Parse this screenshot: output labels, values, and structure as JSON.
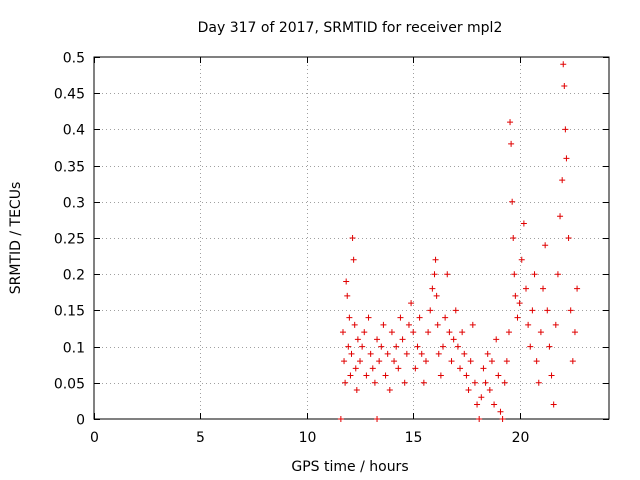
{
  "chart_data": {
    "type": "scatter",
    "title": "Day 317 of 2017, SRMTID for receiver mpl2",
    "xlabel": "GPS time / hours",
    "ylabel": "SRMTID / TECUs",
    "xlim": [
      0,
      24.2
    ],
    "ylim": [
      0,
      0.5
    ],
    "x_ticks": [
      0,
      5,
      10,
      15,
      20
    ],
    "x_tick_labels": [
      "0",
      "5",
      "10",
      "15",
      "20"
    ],
    "y_ticks": [
      0,
      0.05,
      0.1,
      0.15,
      0.2,
      0.25,
      0.3,
      0.35,
      0.4,
      0.45,
      0.5
    ],
    "y_tick_labels": [
      "0",
      "0.05",
      "0.1",
      "0.15",
      "0.2",
      "0.25",
      "0.3",
      "0.35",
      "0.4",
      "0.45",
      "0.5"
    ],
    "grid": true,
    "marker": "plus",
    "marker_color": "#e00000",
    "series": [
      {
        "name": "SRMTID",
        "points": [
          [
            11.6,
            0.0
          ],
          [
            11.7,
            0.12
          ],
          [
            11.75,
            0.08
          ],
          [
            11.8,
            0.05
          ],
          [
            11.85,
            0.19
          ],
          [
            11.9,
            0.17
          ],
          [
            11.95,
            0.1
          ],
          [
            12.0,
            0.14
          ],
          [
            12.05,
            0.06
          ],
          [
            12.1,
            0.09
          ],
          [
            12.15,
            0.25
          ],
          [
            12.2,
            0.22
          ],
          [
            12.25,
            0.13
          ],
          [
            12.3,
            0.07
          ],
          [
            12.35,
            0.04
          ],
          [
            12.4,
            0.11
          ],
          [
            12.5,
            0.08
          ],
          [
            12.6,
            0.1
          ],
          [
            12.7,
            0.12
          ],
          [
            12.8,
            0.06
          ],
          [
            12.9,
            0.14
          ],
          [
            13.0,
            0.09
          ],
          [
            13.1,
            0.07
          ],
          [
            13.2,
            0.05
          ],
          [
            13.3,
            0.0
          ],
          [
            13.3,
            0.11
          ],
          [
            13.4,
            0.08
          ],
          [
            13.5,
            0.1
          ],
          [
            13.6,
            0.13
          ],
          [
            13.7,
            0.06
          ],
          [
            13.8,
            0.09
          ],
          [
            13.9,
            0.04
          ],
          [
            14.0,
            0.12
          ],
          [
            14.1,
            0.08
          ],
          [
            14.2,
            0.1
          ],
          [
            14.3,
            0.07
          ],
          [
            14.4,
            0.14
          ],
          [
            14.5,
            0.11
          ],
          [
            14.6,
            0.05
          ],
          [
            14.7,
            0.09
          ],
          [
            14.8,
            0.13
          ],
          [
            14.9,
            0.16
          ],
          [
            15.0,
            0.12
          ],
          [
            15.1,
            0.07
          ],
          [
            15.2,
            0.1
          ],
          [
            15.3,
            0.14
          ],
          [
            15.4,
            0.09
          ],
          [
            15.5,
            0.05
          ],
          [
            15.6,
            0.08
          ],
          [
            15.7,
            0.12
          ],
          [
            15.8,
            0.15
          ],
          [
            15.9,
            0.18
          ],
          [
            16.0,
            0.2
          ],
          [
            16.05,
            0.22
          ],
          [
            16.1,
            0.17
          ],
          [
            16.15,
            0.13
          ],
          [
            16.2,
            0.09
          ],
          [
            16.3,
            0.06
          ],
          [
            16.4,
            0.1
          ],
          [
            16.5,
            0.14
          ],
          [
            16.6,
            0.2
          ],
          [
            16.7,
            0.12
          ],
          [
            16.8,
            0.08
          ],
          [
            16.9,
            0.11
          ],
          [
            17.0,
            0.15
          ],
          [
            17.1,
            0.1
          ],
          [
            17.2,
            0.07
          ],
          [
            17.3,
            0.12
          ],
          [
            17.4,
            0.09
          ],
          [
            17.5,
            0.06
          ],
          [
            17.6,
            0.04
          ],
          [
            17.7,
            0.08
          ],
          [
            17.8,
            0.13
          ],
          [
            17.9,
            0.05
          ],
          [
            18.0,
            0.02
          ],
          [
            18.1,
            0.0
          ],
          [
            18.2,
            0.03
          ],
          [
            18.3,
            0.07
          ],
          [
            18.4,
            0.05
          ],
          [
            18.5,
            0.09
          ],
          [
            18.6,
            0.04
          ],
          [
            18.7,
            0.08
          ],
          [
            18.8,
            0.02
          ],
          [
            18.9,
            0.11
          ],
          [
            19.0,
            0.06
          ],
          [
            19.1,
            0.01
          ],
          [
            19.2,
            0.0
          ],
          [
            19.3,
            0.05
          ],
          [
            19.4,
            0.08
          ],
          [
            19.5,
            0.12
          ],
          [
            19.55,
            0.41
          ],
          [
            19.6,
            0.38
          ],
          [
            19.65,
            0.3
          ],
          [
            19.7,
            0.25
          ],
          [
            19.75,
            0.2
          ],
          [
            19.8,
            0.17
          ],
          [
            19.9,
            0.14
          ],
          [
            20.0,
            0.16
          ],
          [
            20.1,
            0.22
          ],
          [
            20.2,
            0.27
          ],
          [
            20.3,
            0.18
          ],
          [
            20.4,
            0.13
          ],
          [
            20.5,
            0.1
          ],
          [
            20.6,
            0.15
          ],
          [
            20.7,
            0.2
          ],
          [
            20.8,
            0.08
          ],
          [
            20.9,
            0.05
          ],
          [
            21.0,
            0.12
          ],
          [
            21.1,
            0.18
          ],
          [
            21.2,
            0.24
          ],
          [
            21.3,
            0.15
          ],
          [
            21.4,
            0.1
          ],
          [
            21.5,
            0.06
          ],
          [
            21.6,
            0.02
          ],
          [
            21.7,
            0.13
          ],
          [
            21.8,
            0.2
          ],
          [
            21.9,
            0.28
          ],
          [
            22.0,
            0.33
          ],
          [
            22.05,
            0.49
          ],
          [
            22.1,
            0.46
          ],
          [
            22.15,
            0.4
          ],
          [
            22.2,
            0.36
          ],
          [
            22.3,
            0.25
          ],
          [
            22.4,
            0.15
          ],
          [
            22.5,
            0.08
          ],
          [
            22.6,
            0.12
          ],
          [
            22.7,
            0.18
          ]
        ]
      }
    ]
  }
}
